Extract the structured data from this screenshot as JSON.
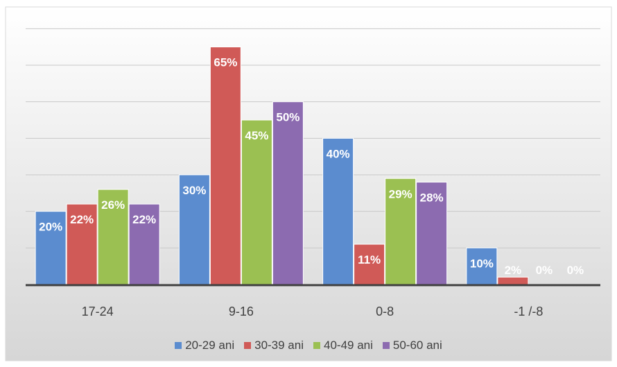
{
  "chart_data": {
    "type": "bar",
    "categories": [
      "17-24",
      "9-16",
      "0-8",
      "-1 /-8"
    ],
    "series": [
      {
        "name": "20-29 ani",
        "color": "#5b8ccf",
        "values": [
          20,
          30,
          40,
          10
        ],
        "labels": [
          "20%",
          "30%",
          "40%",
          "10%"
        ]
      },
      {
        "name": "30-39 ani",
        "color": "#d05a57",
        "values": [
          22,
          65,
          11,
          2
        ],
        "labels": [
          "22%",
          "65%",
          "11%",
          "2%"
        ]
      },
      {
        "name": "40-49 ani",
        "color": "#9bc052",
        "values": [
          26,
          45,
          29,
          0
        ],
        "labels": [
          "26%",
          "45%",
          "29%",
          "0%"
        ]
      },
      {
        "name": "50-60 ani",
        "color": "#8c6bb0",
        "values": [
          22,
          50,
          28,
          0
        ],
        "labels": [
          "22%",
          "50%",
          "28%",
          "0%"
        ]
      }
    ],
    "ylim": [
      0,
      75
    ],
    "grid": true,
    "legend_position": "bottom",
    "title": "",
    "xlabel": "",
    "ylabel": ""
  }
}
